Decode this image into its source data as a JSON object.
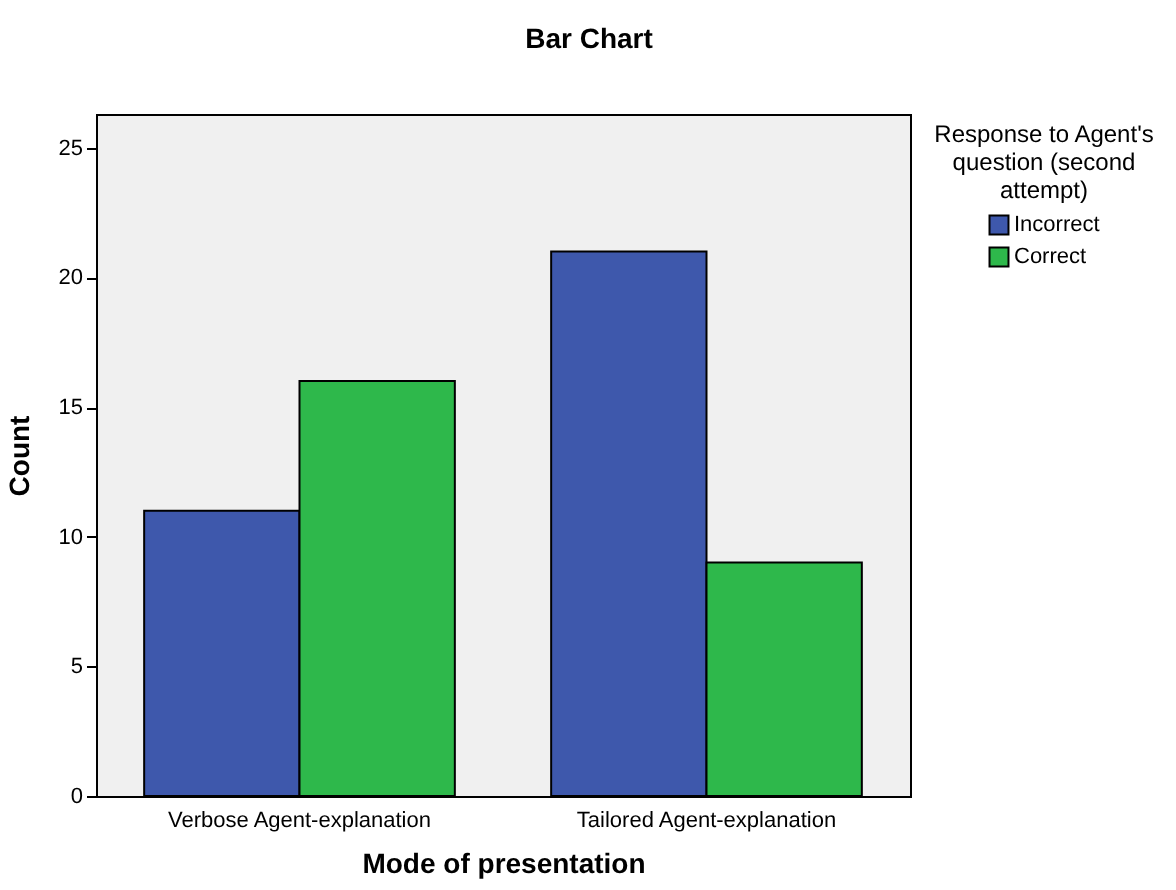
{
  "chart_data": {
    "type": "bar",
    "title": "Bar Chart",
    "xlabel": "Mode of presentation",
    "ylabel": "Count",
    "legend_title": "Response to Agent's question (second attempt)",
    "categories": [
      "Verbose Agent-explanation",
      "Tailored Agent-explanation"
    ],
    "series": [
      {
        "name": "Incorrect",
        "color": "#3e58ac",
        "values": [
          11,
          21
        ]
      },
      {
        "name": "Correct",
        "color": "#2eb84b",
        "values": [
          16,
          9
        ]
      }
    ],
    "ylim": [
      0,
      26.3
    ],
    "yticks": [
      0,
      5,
      10,
      15,
      20,
      25
    ],
    "grid": false,
    "legend": "right"
  }
}
